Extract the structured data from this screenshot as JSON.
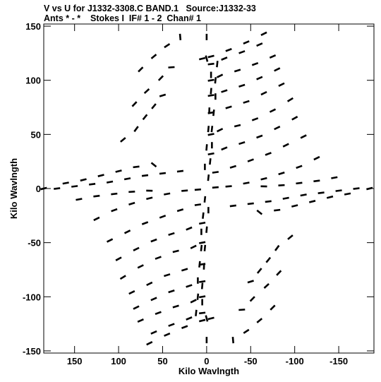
{
  "header": {
    "line1": "V vs U for J1332-3308.C BAND.1   Source:J1332-33",
    "line2": "Ants * - *    Stokes I  IF# 1 - 2  Chan# 1"
  },
  "chart_data": {
    "type": "scatter",
    "title": "V vs U for J1332-3308.C BAND.1   Source:J1332-33",
    "subtitle": "Ants * - *    Stokes I  IF# 1 - 2  Chan# 1",
    "xlabel": "Kilo Wavlngth",
    "ylabel": "Kilo Wavlngth",
    "xlim": [
      185,
      -190
    ],
    "ylim": [
      -152,
      152
    ],
    "x_ticks": [
      150,
      100,
      50,
      0,
      -50,
      -100,
      -150
    ],
    "y_ticks": [
      150,
      100,
      50,
      0,
      -50,
      -100,
      -150
    ],
    "x_tick_labels": [
      "150",
      "100",
      "50",
      "0",
      "-50",
      "-100",
      "-150"
    ],
    "y_tick_labels": [
      "150",
      "100",
      "50",
      "0",
      "-50",
      "-100",
      "-150"
    ],
    "grid": false,
    "marker": "short dashes (uv tracks, point-symmetric about origin)",
    "color": "#000000",
    "series": [
      {
        "points": [
          [
            -65,
            143
          ],
          [
            -45,
            135
          ],
          [
            -25,
            128
          ],
          [
            -5,
            122
          ],
          [
            5,
            120
          ],
          [
            -60,
            133
          ],
          [
            -40,
            126
          ],
          [
            -20,
            120
          ],
          [
            -5,
            115
          ],
          [
            -75,
            122
          ],
          [
            -55,
            115
          ],
          [
            -35,
            109
          ],
          [
            -15,
            104
          ],
          [
            -5,
            100
          ],
          [
            -80,
            110
          ],
          [
            -60,
            102
          ],
          [
            -40,
            95
          ],
          [
            -20,
            90
          ],
          [
            -5,
            86
          ],
          [
            -85,
            96
          ],
          [
            -65,
            88
          ],
          [
            -45,
            80
          ],
          [
            -25,
            75
          ],
          [
            -5,
            70
          ],
          [
            -95,
            82
          ],
          [
            -75,
            72
          ],
          [
            -55,
            64
          ],
          [
            -35,
            58
          ],
          [
            -15,
            54
          ],
          [
            -5,
            50
          ],
          [
            -100,
            65
          ],
          [
            -80,
            56
          ],
          [
            -60,
            48
          ],
          [
            -40,
            42
          ],
          [
            -20,
            37
          ],
          [
            -5,
            32
          ],
          [
            -110,
            48
          ],
          [
            -90,
            40
          ],
          [
            -70,
            32
          ],
          [
            -50,
            26
          ],
          [
            -30,
            20
          ],
          [
            -10,
            15
          ],
          [
            -125,
            28
          ],
          [
            -105,
            20
          ],
          [
            -85,
            14
          ],
          [
            -65,
            9
          ],
          [
            -45,
            5
          ],
          [
            -25,
            2
          ],
          [
            -10,
            1
          ],
          [
            -145,
            10
          ],
          [
            -125,
            7
          ],
          [
            -105,
            5
          ],
          [
            -85,
            3
          ],
          [
            -65,
            2
          ],
          [
            -170,
            0
          ],
          [
            -150,
            -2
          ],
          [
            -130,
            -4
          ],
          [
            -110,
            -6
          ],
          [
            -90,
            -9
          ],
          [
            -70,
            -12
          ],
          [
            -50,
            -14
          ],
          [
            -30,
            -16
          ],
          [
            -185,
            0
          ],
          [
            -160,
            -5
          ],
          [
            -140,
            -8
          ],
          [
            -120,
            -12
          ],
          [
            -100,
            -16
          ],
          [
            -80,
            -20
          ],
          [
            -60,
            -22
          ],
          [
            -95,
            -45
          ],
          [
            -80,
            -55
          ],
          [
            -70,
            -66
          ],
          [
            -60,
            -76
          ],
          [
            -50,
            -86
          ],
          [
            -82,
            -78
          ],
          [
            -68,
            -90
          ],
          [
            -52,
            -102
          ],
          [
            -40,
            -112
          ],
          [
            -75,
            -110
          ],
          [
            -60,
            -122
          ],
          [
            -45,
            -132
          ],
          [
            -30,
            -140
          ],
          [
            0,
            140
          ],
          [
            0,
            120
          ],
          [
            -5,
            105
          ],
          [
            -5,
            90
          ],
          [
            -3,
            72
          ],
          [
            -2,
            55
          ],
          [
            0,
            38
          ],
          [
            2,
            20
          ],
          [
            2,
            -10
          ],
          [
            4,
            -25
          ],
          [
            6,
            -40
          ],
          [
            6,
            -55
          ],
          [
            8,
            -70
          ],
          [
            10,
            -85
          ],
          [
            10,
            -100
          ],
          [
            12,
            -115
          ]
        ]
      },
      {
        "points": [
          [
            65,
            -143
          ],
          [
            45,
            -135
          ],
          [
            25,
            -128
          ],
          [
            5,
            -122
          ],
          [
            -5,
            -120
          ],
          [
            60,
            -133
          ],
          [
            40,
            -126
          ],
          [
            20,
            -120
          ],
          [
            5,
            -115
          ],
          [
            75,
            -122
          ],
          [
            55,
            -115
          ],
          [
            35,
            -109
          ],
          [
            15,
            -104
          ],
          [
            5,
            -100
          ],
          [
            80,
            -110
          ],
          [
            60,
            -102
          ],
          [
            40,
            -95
          ],
          [
            20,
            -90
          ],
          [
            5,
            -86
          ],
          [
            85,
            -96
          ],
          [
            65,
            -88
          ],
          [
            45,
            -80
          ],
          [
            25,
            -75
          ],
          [
            5,
            -70
          ],
          [
            95,
            -82
          ],
          [
            75,
            -72
          ],
          [
            55,
            -64
          ],
          [
            35,
            -58
          ],
          [
            15,
            -54
          ],
          [
            5,
            -50
          ],
          [
            100,
            -65
          ],
          [
            80,
            -56
          ],
          [
            60,
            -48
          ],
          [
            40,
            -42
          ],
          [
            20,
            -37
          ],
          [
            5,
            -32
          ],
          [
            110,
            -48
          ],
          [
            90,
            -40
          ],
          [
            70,
            -32
          ],
          [
            50,
            -26
          ],
          [
            30,
            -20
          ],
          [
            10,
            -15
          ],
          [
            125,
            -28
          ],
          [
            105,
            -20
          ],
          [
            85,
            -14
          ],
          [
            65,
            -9
          ],
          [
            45,
            -5
          ],
          [
            25,
            -2
          ],
          [
            10,
            -1
          ],
          [
            145,
            -10
          ],
          [
            125,
            -7
          ],
          [
            105,
            -5
          ],
          [
            85,
            -3
          ],
          [
            65,
            -2
          ],
          [
            170,
            0
          ],
          [
            150,
            2
          ],
          [
            130,
            4
          ],
          [
            110,
            6
          ],
          [
            90,
            9
          ],
          [
            70,
            12
          ],
          [
            50,
            14
          ],
          [
            30,
            16
          ],
          [
            185,
            0
          ],
          [
            160,
            5
          ],
          [
            140,
            8
          ],
          [
            120,
            12
          ],
          [
            100,
            16
          ],
          [
            80,
            20
          ],
          [
            60,
            22
          ],
          [
            95,
            45
          ],
          [
            80,
            55
          ],
          [
            70,
            66
          ],
          [
            60,
            76
          ],
          [
            50,
            86
          ],
          [
            82,
            78
          ],
          [
            68,
            90
          ],
          [
            52,
            102
          ],
          [
            40,
            112
          ],
          [
            75,
            110
          ],
          [
            60,
            122
          ],
          [
            45,
            132
          ],
          [
            30,
            140
          ],
          [
            0,
            -140
          ],
          [
            0,
            -120
          ],
          [
            5,
            -105
          ],
          [
            5,
            -90
          ],
          [
            3,
            -72
          ],
          [
            2,
            -55
          ],
          [
            0,
            -38
          ],
          [
            -2,
            -20
          ],
          [
            -2,
            10
          ],
          [
            -4,
            25
          ],
          [
            -6,
            40
          ],
          [
            -6,
            55
          ],
          [
            -8,
            70
          ],
          [
            -10,
            85
          ],
          [
            -10,
            100
          ],
          [
            -12,
            115
          ]
        ]
      }
    ]
  }
}
